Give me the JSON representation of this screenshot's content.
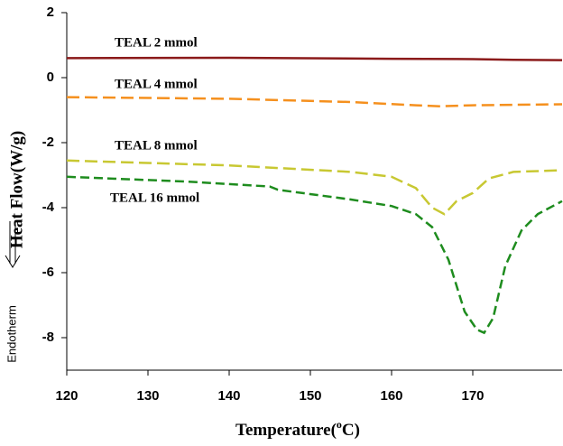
{
  "chart_data": {
    "type": "line",
    "x_label": [
      "Temperature(",
      "o",
      "C)"
    ],
    "y_label": "Heat Flow(W/g)",
    "side_note": "Endotherm",
    "xlim": [
      120,
      181
    ],
    "xticks": [
      120,
      130,
      140,
      150,
      160,
      170
    ],
    "ylim": [
      -9,
      2
    ],
    "yticks": [
      2,
      0,
      -2,
      -4,
      -6,
      -8
    ],
    "series": [
      {
        "name": "TEAL 2 mmol",
        "color": "#8b1a1a",
        "dash": "none",
        "x": [
          120,
          140,
          160,
          170,
          175,
          181
        ],
        "values": [
          0.6,
          0.61,
          0.58,
          0.57,
          0.55,
          0.54
        ]
      },
      {
        "name": "TEAL 4 mmol",
        "color": "#f5901e",
        "dash": "14 6",
        "x": [
          120,
          140,
          155,
          163,
          166,
          170,
          181
        ],
        "values": [
          -0.6,
          -0.65,
          -0.75,
          -0.85,
          -0.88,
          -0.85,
          -0.82
        ]
      },
      {
        "name": "TEAL 8 mmol",
        "color": "#c8c832",
        "dash": "14 6",
        "x": [
          120,
          140,
          155,
          160,
          163,
          165,
          166.5,
          168,
          170,
          172,
          175,
          181
        ],
        "values": [
          -2.55,
          -2.7,
          -2.9,
          -3.05,
          -3.4,
          -4.0,
          -4.2,
          -3.8,
          -3.55,
          -3.1,
          -2.9,
          -2.85
        ]
      },
      {
        "name": "TEAL 16 mmol",
        "color": "#1e8c1e",
        "dash": "10 5",
        "x": [
          120,
          135,
          145,
          146,
          155,
          160,
          163,
          165,
          167,
          169,
          170.5,
          171.4,
          172.5,
          174,
          176,
          178,
          181
        ],
        "values": [
          -3.05,
          -3.2,
          -3.35,
          -3.45,
          -3.75,
          -3.95,
          -4.2,
          -4.6,
          -5.6,
          -7.2,
          -7.75,
          -7.85,
          -7.4,
          -5.8,
          -4.7,
          -4.2,
          -3.8
        ]
      }
    ]
  }
}
